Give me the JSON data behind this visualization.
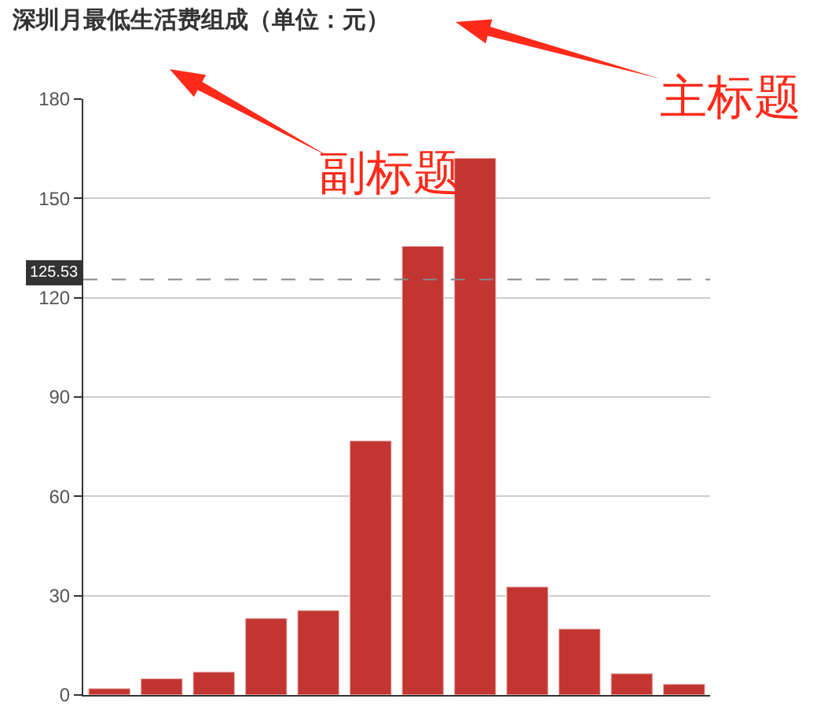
{
  "chart_data": {
    "type": "bar",
    "title": "深圳月最低生活费组成（单位：元）",
    "categories": [
      null,
      null,
      null,
      null,
      null,
      null,
      null,
      null,
      null,
      null,
      null,
      null
    ],
    "values": [
      2.0,
      5.0,
      7.0,
      23.2,
      25.6,
      76.8,
      135.6,
      162.2,
      32.7,
      20.0,
      6.5,
      3.3
    ],
    "color": "#c23531",
    "ylim": [
      0,
      180
    ],
    "yticks": [
      0,
      30,
      60,
      90,
      120,
      150,
      180
    ],
    "grid": "y",
    "tick_labels": "y",
    "ref_lines": [
      {
        "axis": "y",
        "value": 125.53,
        "label": "125.53",
        "color": "#888888",
        "line_style": "dashed"
      }
    ],
    "annotations": [
      "主标题",
      "副标题"
    ]
  }
}
